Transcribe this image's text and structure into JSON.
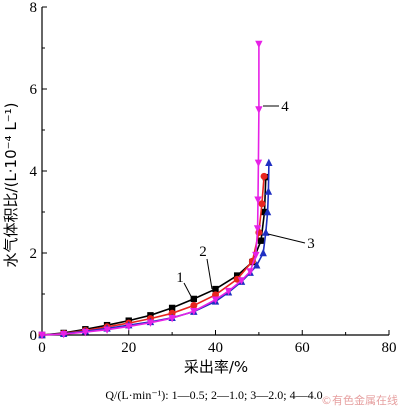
{
  "chart_data": {
    "type": "line",
    "xlabel": "采出率/%",
    "ylabel": "水气体积比/(L·10⁻⁴ L⁻¹)",
    "xlim": [
      0,
      80
    ],
    "ylim": [
      0,
      8
    ],
    "xticks": [
      0,
      20,
      40,
      60,
      80
    ],
    "yticks": [
      0,
      2,
      4,
      6,
      8
    ],
    "grid": false,
    "series": [
      {
        "name": "1",
        "color": "#000000",
        "marker": "square",
        "points": [
          [
            0,
            0
          ],
          [
            5,
            0.05
          ],
          [
            10,
            0.14
          ],
          [
            15,
            0.24
          ],
          [
            20,
            0.35
          ],
          [
            25,
            0.48
          ],
          [
            30,
            0.66
          ],
          [
            35,
            0.88
          ],
          [
            40,
            1.12
          ],
          [
            45,
            1.45
          ],
          [
            48.5,
            1.78
          ],
          [
            50.5,
            2.3
          ],
          [
            51.3,
            3.0
          ],
          [
            51.6,
            3.85
          ]
        ]
      },
      {
        "name": "2",
        "color": "#e8251f",
        "marker": "circle",
        "points": [
          [
            0,
            0
          ],
          [
            5,
            0.04
          ],
          [
            10,
            0.11
          ],
          [
            15,
            0.2
          ],
          [
            20,
            0.29
          ],
          [
            25,
            0.4
          ],
          [
            30,
            0.53
          ],
          [
            35,
            0.72
          ],
          [
            40,
            0.98
          ],
          [
            45,
            1.36
          ],
          [
            48.5,
            1.8
          ],
          [
            50,
            2.5
          ],
          [
            50.7,
            3.2
          ],
          [
            51.2,
            3.87
          ]
        ]
      },
      {
        "name": "3",
        "color": "#1f2fc2",
        "marker": "triangle",
        "points": [
          [
            0,
            0
          ],
          [
            5,
            0.03
          ],
          [
            10,
            0.09
          ],
          [
            15,
            0.16
          ],
          [
            20,
            0.24
          ],
          [
            25,
            0.32
          ],
          [
            30,
            0.42
          ],
          [
            35,
            0.57
          ],
          [
            40,
            0.82
          ],
          [
            43,
            1.04
          ],
          [
            46,
            1.3
          ],
          [
            48,
            1.52
          ],
          [
            49.5,
            1.7
          ],
          [
            51,
            2.0
          ],
          [
            51.6,
            2.5
          ],
          [
            52,
            3.0
          ],
          [
            52.2,
            3.5
          ],
          [
            52.3,
            4.2
          ]
        ]
      },
      {
        "name": "4",
        "color": "#e621e6",
        "marker": "triangle-down",
        "points": [
          [
            0,
            0
          ],
          [
            5,
            0.02
          ],
          [
            10,
            0.07
          ],
          [
            15,
            0.13
          ],
          [
            20,
            0.21
          ],
          [
            25,
            0.3
          ],
          [
            30,
            0.41
          ],
          [
            35,
            0.58
          ],
          [
            40,
            0.86
          ],
          [
            43,
            1.07
          ],
          [
            46,
            1.33
          ],
          [
            48,
            1.55
          ],
          [
            49.3,
            1.95
          ],
          [
            49.7,
            2.6
          ],
          [
            49.8,
            3.3
          ],
          [
            49.9,
            4.2
          ],
          [
            50,
            5.5
          ],
          [
            50,
            7.1
          ]
        ]
      }
    ],
    "curve_labels": [
      {
        "text": "1",
        "series": "1"
      },
      {
        "text": "2",
        "series": "2"
      },
      {
        "text": "3",
        "series": "3"
      },
      {
        "text": "4",
        "series": "4"
      }
    ]
  },
  "caption": "Q/(L·min⁻¹): 1—0.5; 2—1.0; 3—2.0; 4—4.0",
  "watermark": "©有色金属在线"
}
